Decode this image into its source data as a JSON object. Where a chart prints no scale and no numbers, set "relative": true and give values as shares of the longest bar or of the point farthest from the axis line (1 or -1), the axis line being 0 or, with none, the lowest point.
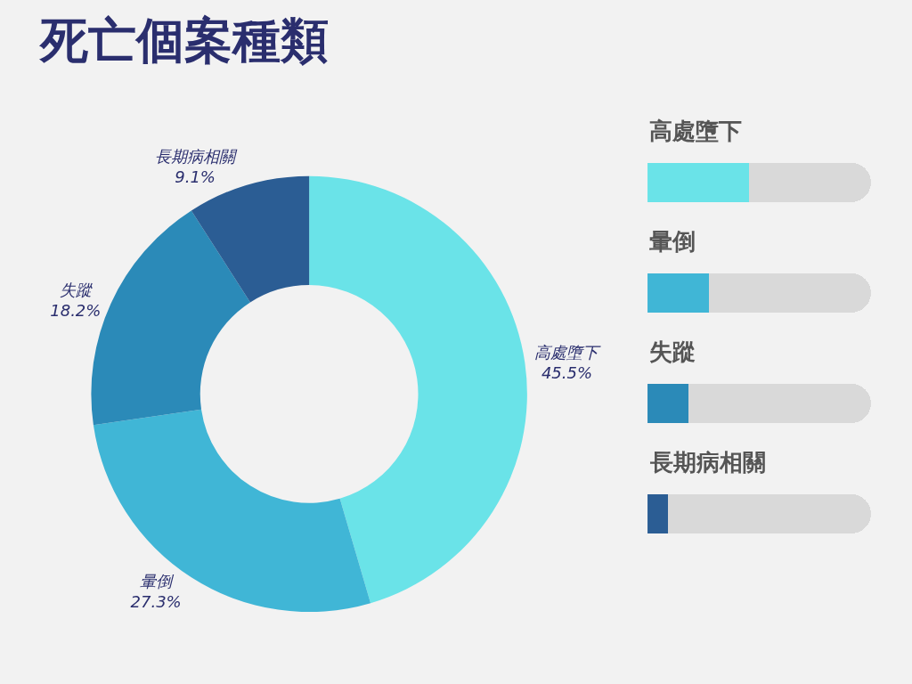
{
  "chart_data": [
    {
      "type": "donut",
      "title": "死亡個案種類",
      "categories": [
        "高處墮下",
        "暈倒",
        "失蹤",
        "長期病相關"
      ],
      "values": [
        45.5,
        27.3,
        18.2,
        9.1
      ],
      "value_labels": [
        "45.5%",
        "27.3%",
        "18.2%",
        "9.1%"
      ],
      "colors": [
        "#6ae3e8",
        "#40b6d6",
        "#2b8ab8",
        "#2b5d94"
      ]
    },
    {
      "type": "bar",
      "orientation": "horizontal",
      "stacked": true,
      "relative": true,
      "tick_labels": false,
      "categories": [
        "高處墮下",
        "暈倒",
        "失蹤",
        "長期病相關"
      ],
      "series": [
        {
          "colors": [
            "#6ae3e8",
            "#40b6d6",
            "#2b8ab8",
            "#2b5d94"
          ],
          "values": [
            0.455,
            0.273,
            0.182,
            0.091
          ]
        },
        {
          "color": "#d9d9d9",
          "values": [
            0.545,
            0.727,
            0.818,
            0.909
          ]
        }
      ]
    }
  ]
}
